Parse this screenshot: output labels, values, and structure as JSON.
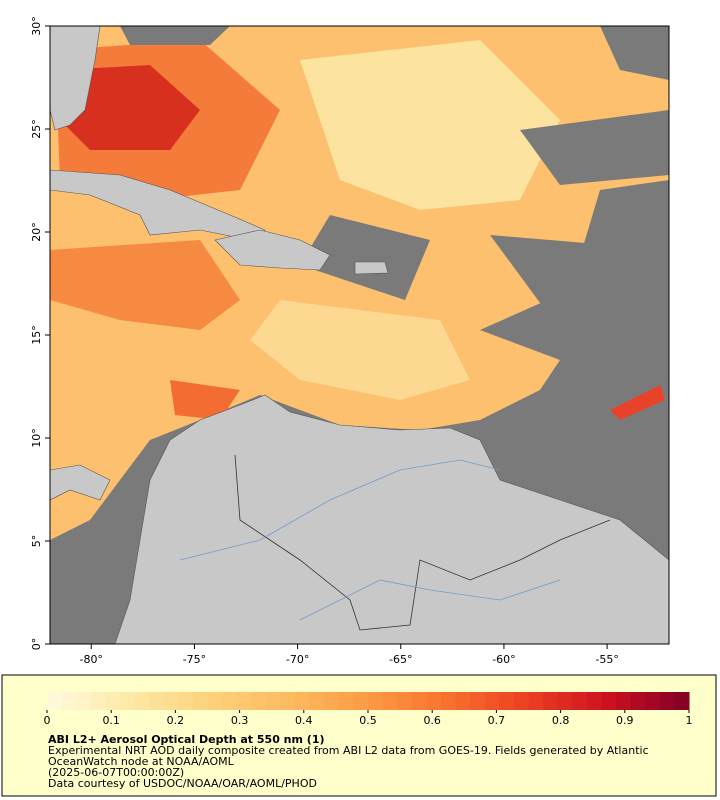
{
  "map": {
    "xlim": [
      -82,
      -52
    ],
    "ylim": [
      0,
      30
    ],
    "xticks": [
      {
        "value": -80,
        "label": "-80°"
      },
      {
        "value": -75,
        "label": "-75°"
      },
      {
        "value": -70,
        "label": "-70°"
      },
      {
        "value": -65,
        "label": "-65°"
      },
      {
        "value": -60,
        "label": "-60°"
      },
      {
        "value": -55,
        "label": "-55°"
      }
    ],
    "yticks": [
      {
        "value": 0,
        "label": "0°"
      },
      {
        "value": 5,
        "label": "5°"
      },
      {
        "value": 10,
        "label": "10°"
      },
      {
        "value": 15,
        "label": "15°"
      },
      {
        "value": 20,
        "label": "20°"
      },
      {
        "value": 25,
        "label": "25°"
      },
      {
        "value": 30,
        "label": "30°"
      }
    ]
  },
  "colorbar": {
    "range": [
      0,
      1
    ],
    "ticks": [
      0,
      0.1,
      0.2,
      0.3,
      0.4,
      0.5,
      0.6,
      0.7,
      0.8,
      0.9,
      1
    ],
    "colors": [
      "#fffbe0",
      "#feeaa8",
      "#fdd27c",
      "#fdbb60",
      "#fc9a44",
      "#f8702e",
      "#ec3e22",
      "#cc1020",
      "#800026"
    ]
  },
  "caption": {
    "title": "ABI L2+ Aerosol Optical Depth at 550 nm (1)",
    "lines": [
      "Experimental NRT AOD daily composite created from ABI L2 data from GOES-19. Fields generated by Atlantic",
      "OceanWatch node at NOAA/AOML",
      "(2025-06-07T00:00:00Z)",
      "Data courtesy of USDOC/NOAA/OAR/AOML/PHOD"
    ]
  }
}
